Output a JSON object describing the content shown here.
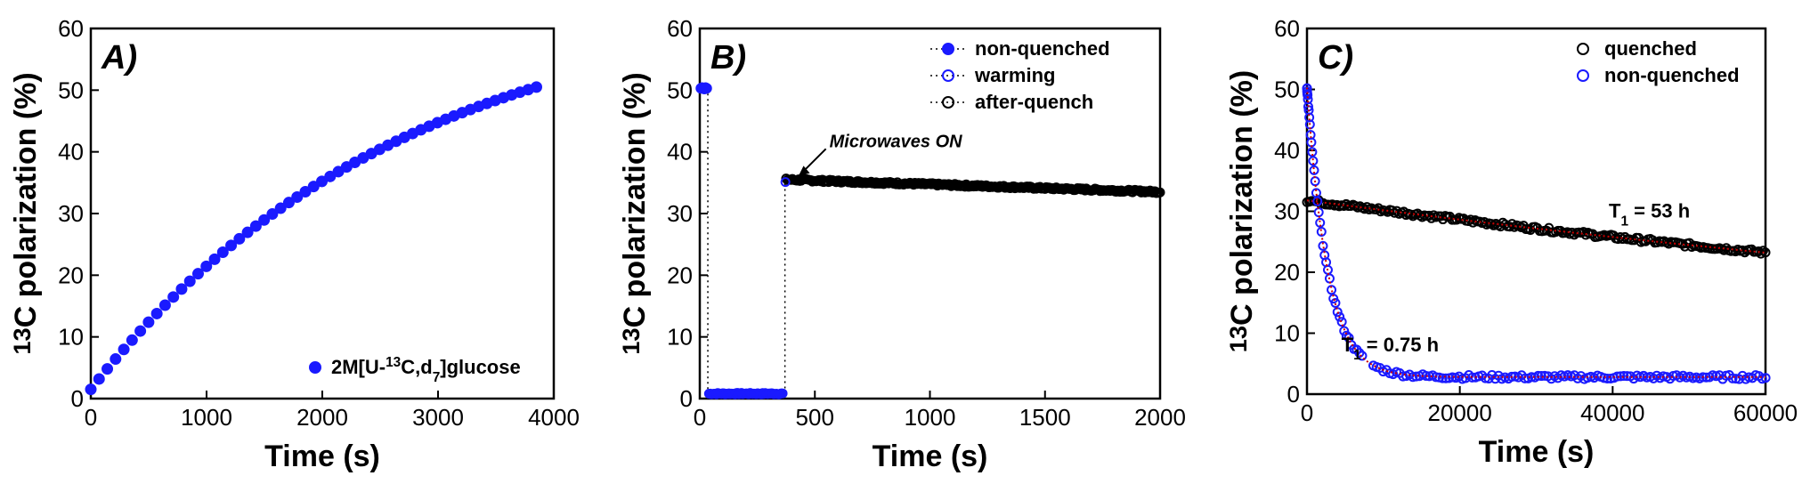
{
  "figure": {
    "panels": [
      "A)",
      "B)",
      "C)"
    ]
  },
  "chart_data": [
    {
      "type": "scatter",
      "panel": "A)",
      "xlabel": "Time (s)",
      "ylabel_parts": [
        "13",
        "C polarization (%)"
      ],
      "xlim": [
        0,
        4000
      ],
      "ylim": [
        0,
        60
      ],
      "xticks": [
        0,
        1000,
        2000,
        3000,
        4000
      ],
      "yticks": [
        0,
        10,
        20,
        30,
        40,
        50,
        60
      ],
      "legend_position": "bottom-right",
      "series": [
        {
          "name_parts": [
            "2M[U-",
            "13",
            "C,d",
            "7",
            "]glucose"
          ],
          "marker": "filled-circle",
          "color": "#1a1aff",
          "model": "saturation",
          "pmax": 66,
          "tau": 2700,
          "p0": 1.5,
          "t_start": 0,
          "t_end": 3850,
          "n_points": 55
        }
      ]
    },
    {
      "type": "scatter",
      "panel": "B)",
      "xlabel": "Time (s)",
      "ylabel_parts": [
        "13",
        "C polarization (%)"
      ],
      "xlim": [
        0,
        2000
      ],
      "ylim": [
        0,
        60
      ],
      "xticks": [
        0,
        500,
        1000,
        1500,
        2000
      ],
      "yticks": [
        0,
        10,
        20,
        30,
        40,
        50,
        60
      ],
      "legend_position": "top-right",
      "annotation": {
        "text": "Microwaves ON",
        "x": 370,
        "y": 35
      },
      "series": [
        {
          "name": "non-quenched",
          "marker": "filled-circle",
          "color": "#1a1aff",
          "x": [
            5,
            10,
            15,
            20,
            25,
            30
          ],
          "y": [
            50.3,
            50.4,
            50.3,
            50.2,
            50.4,
            50.3
          ]
        },
        {
          "name": "warming",
          "marker": "open-circle",
          "color": "#1a1aff",
          "x_start": 40,
          "x_end": 360,
          "y_level": 0.8,
          "n_points": 60
        },
        {
          "name": "after-quench",
          "marker": "open-circle",
          "color": "#000000",
          "x_start": 375,
          "x_end": 2000,
          "y_start": 35.5,
          "y_end": 33.5,
          "n_points": 300
        }
      ],
      "dotted_lines": [
        [
          35,
          50.3,
          35,
          0.8
        ],
        [
          370,
          0.8,
          370,
          35
        ]
      ]
    },
    {
      "type": "scatter",
      "panel": "C)",
      "xlabel": "Time (s)",
      "ylabel_parts": [
        "13",
        "C polarization (%)"
      ],
      "xlim": [
        0,
        60000
      ],
      "ylim": [
        0,
        60
      ],
      "xticks": [
        0,
        20000,
        40000,
        60000
      ],
      "yticks": [
        0,
        10,
        20,
        30,
        40,
        50,
        60
      ],
      "legend_position": "top-right",
      "annotations": [
        {
          "text_parts": [
            "T",
            "1",
            " = 53 h"
          ],
          "x": 39500,
          "y": 29
        },
        {
          "text_parts": [
            "T",
            "1",
            " = 0.75 h"
          ],
          "x": 4500,
          "y": 7
        }
      ],
      "series": [
        {
          "name": "quenched",
          "marker": "open-circle",
          "color": "#000000",
          "model": "decay",
          "p0": 31.8,
          "T1_h": 53,
          "offset": 0,
          "t_start": 0,
          "t_end": 60000,
          "n_points": 200
        },
        {
          "name": "non-quenched",
          "marker": "open-circle",
          "color": "#1a1aff",
          "model": "decay",
          "p0": 47.5,
          "T1_h": 0.75,
          "offset": 2.8,
          "t_start": 0,
          "t_end": 60000,
          "n_points": 160
        }
      ],
      "fit_color": "#cc0000"
    }
  ]
}
